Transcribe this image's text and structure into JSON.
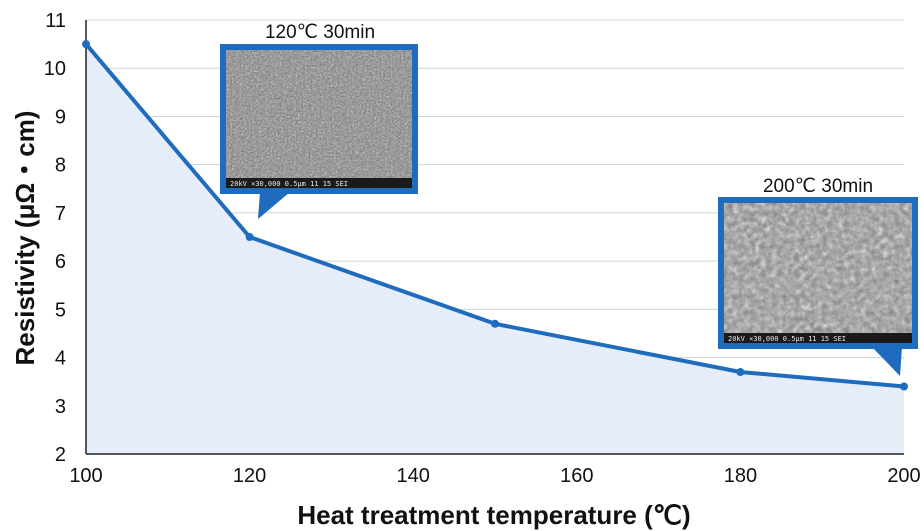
{
  "chart_data": {
    "type": "area",
    "xlabel": "Heat treatment temperature (℃)",
    "ylabel": "Resistivity (μΩ・cm)",
    "xlim": [
      100,
      200
    ],
    "ylim": [
      2,
      11
    ],
    "x_ticks": [
      "100",
      "120",
      "140",
      "160",
      "180",
      "200"
    ],
    "y_ticks": [
      "2",
      "3",
      "4",
      "5",
      "6",
      "7",
      "8",
      "9",
      "10",
      "11"
    ],
    "grid": "horizontal",
    "x": [
      100,
      120,
      150,
      180,
      200
    ],
    "series": [
      {
        "values": [
          10.5,
          6.5,
          4.7,
          3.7,
          3.4
        ]
      }
    ],
    "annotations": [
      {
        "label": "120℃ 30min",
        "x": 120,
        "y": 6.5,
        "sem_caption": "20kV ×30,000 0.5μm 11 15 SEI"
      },
      {
        "label": "200℃ 30min",
        "x": 200,
        "y": 3.4,
        "sem_caption": "20kV ×30,000 0.5μm 11 15 SEI"
      }
    ],
    "colors": {
      "line": "#1f6bbd",
      "fill": "#e5eef8",
      "grid": "#cfd5dc",
      "axis": "#222222"
    }
  }
}
